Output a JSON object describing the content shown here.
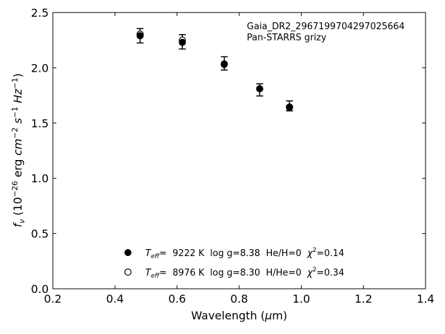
{
  "chart_data": {
    "type": "scatter",
    "title": "",
    "annotation_lines": [
      "Gaia_DR2_2967199704297025664",
      "Pan-STARRS grizy"
    ],
    "xlabel": "Wavelength (μm)",
    "ylabel": "f_ν (10^−26 erg cm^−2 s^−1 Hz^−1)",
    "xlim": [
      0.2,
      1.4
    ],
    "ylim": [
      0.0,
      2.5
    ],
    "xticks": [
      0.2,
      0.4,
      0.6,
      0.8,
      1.0,
      1.2,
      1.4
    ],
    "xtick_labels": [
      "0.2",
      "0.4",
      "0.6",
      "0.8",
      "1.0",
      "1.2",
      "1.4"
    ],
    "yticks": [
      0.0,
      0.5,
      1.0,
      1.5,
      2.0,
      2.5
    ],
    "ytick_labels": [
      "0.0",
      "0.5",
      "1.0",
      "1.5",
      "2.0",
      "2.5"
    ],
    "grid": false,
    "observed": {
      "x": [
        0.481,
        0.617,
        0.752,
        0.866,
        0.962
      ],
      "y": [
        2.29,
        2.235,
        2.04,
        1.8,
        1.655
      ],
      "yerr": [
        0.065,
        0.065,
        0.06,
        0.055,
        0.045
      ]
    },
    "series": [
      {
        "marker": "filled",
        "legend": "T_eff= 9222 K  log g=8.38  He/H=0  χ²=0.14",
        "x": [
          0.481,
          0.617,
          0.752,
          0.866,
          0.962
        ],
        "y": [
          2.29,
          2.23,
          2.03,
          1.81,
          1.645
        ]
      },
      {
        "marker": "open",
        "legend": "T_eff= 8976 K  log g=8.30  H/He=0  χ²=0.34",
        "x": [
          0.481,
          0.617,
          0.752,
          0.866,
          0.962
        ],
        "y": [
          2.305,
          2.25,
          2.035,
          1.81,
          1.64
        ]
      }
    ],
    "legend_items": [
      {
        "t": "T",
        "sub": "eff",
        "rest": "=  9222 K  log g=8.38  He/H=0  ",
        "chi": "χ",
        "sup": "2",
        "tail": "=0.14"
      },
      {
        "t": "T",
        "sub": "eff",
        "rest": "=  8976 K  log g=8.30  H/He=0  ",
        "chi": "χ",
        "sup": "2",
        "tail": "=0.34"
      }
    ],
    "legend_location": "lower-center"
  }
}
